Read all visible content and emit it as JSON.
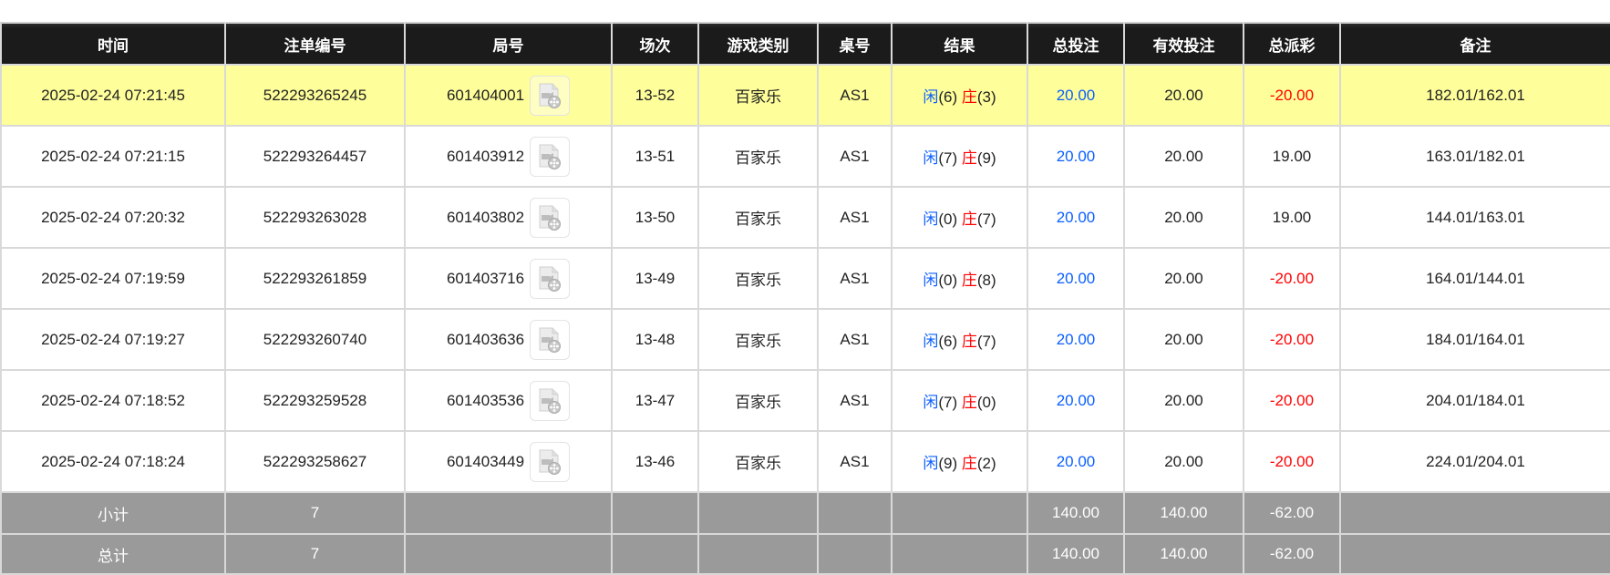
{
  "headers": [
    "时间",
    "注单编号",
    "局号",
    "场次",
    "游戏类别",
    "桌号",
    "结果",
    "总投注",
    "有效投注",
    "总派彩",
    "备注"
  ],
  "rows": [
    {
      "time": "2025-02-24 07:21:45",
      "bet_id": "522293265245",
      "round": "601404001",
      "session": "13-52",
      "game": "百家乐",
      "table": "AS1",
      "player_label": "闲",
      "player_score": "(6)",
      "banker_label": "庄",
      "banker_score": "(3)",
      "total_bet": "20.00",
      "valid_bet": "20.00",
      "payout": "-20.00",
      "payout_negative": true,
      "note": "182.01/162.01",
      "highlighted": true
    },
    {
      "time": "2025-02-24 07:21:15",
      "bet_id": "522293264457",
      "round": "601403912",
      "session": "13-51",
      "game": "百家乐",
      "table": "AS1",
      "player_label": "闲",
      "player_score": "(7)",
      "banker_label": "庄",
      "banker_score": "(9)",
      "total_bet": "20.00",
      "valid_bet": "20.00",
      "payout": "19.00",
      "payout_negative": false,
      "note": "163.01/182.01"
    },
    {
      "time": "2025-02-24 07:20:32",
      "bet_id": "522293263028",
      "round": "601403802",
      "session": "13-50",
      "game": "百家乐",
      "table": "AS1",
      "player_label": "闲",
      "player_score": "(0)",
      "banker_label": "庄",
      "banker_score": "(7)",
      "total_bet": "20.00",
      "valid_bet": "20.00",
      "payout": "19.00",
      "payout_negative": false,
      "note": "144.01/163.01"
    },
    {
      "time": "2025-02-24 07:19:59",
      "bet_id": "522293261859",
      "round": "601403716",
      "session": "13-49",
      "game": "百家乐",
      "table": "AS1",
      "player_label": "闲",
      "player_score": "(0)",
      "banker_label": "庄",
      "banker_score": "(8)",
      "total_bet": "20.00",
      "valid_bet": "20.00",
      "payout": "-20.00",
      "payout_negative": true,
      "note": "164.01/144.01"
    },
    {
      "time": "2025-02-24 07:19:27",
      "bet_id": "522293260740",
      "round": "601403636",
      "session": "13-48",
      "game": "百家乐",
      "table": "AS1",
      "player_label": "闲",
      "player_score": "(6)",
      "banker_label": "庄",
      "banker_score": "(7)",
      "total_bet": "20.00",
      "valid_bet": "20.00",
      "payout": "-20.00",
      "payout_negative": true,
      "note": "184.01/164.01"
    },
    {
      "time": "2025-02-24 07:18:52",
      "bet_id": "522293259528",
      "round": "601403536",
      "session": "13-47",
      "game": "百家乐",
      "table": "AS1",
      "player_label": "闲",
      "player_score": "(7)",
      "banker_label": "庄",
      "banker_score": "(0)",
      "total_bet": "20.00",
      "valid_bet": "20.00",
      "payout": "-20.00",
      "payout_negative": true,
      "note": "204.01/184.01"
    },
    {
      "time": "2025-02-24 07:18:24",
      "bet_id": "522293258627",
      "round": "601403449",
      "session": "13-46",
      "game": "百家乐",
      "table": "AS1",
      "player_label": "闲",
      "player_score": "(9)",
      "banker_label": "庄",
      "banker_score": "(2)",
      "total_bet": "20.00",
      "valid_bet": "20.00",
      "payout": "-20.00",
      "payout_negative": true,
      "note": "224.01/204.01"
    }
  ],
  "subtotal": {
    "label": "小计",
    "count": "7",
    "total_bet": "140.00",
    "valid_bet": "140.00",
    "payout": "-62.00"
  },
  "total": {
    "label": "总计",
    "count": "7",
    "total_bet": "140.00",
    "valid_bet": "140.00",
    "payout": "-62.00"
  },
  "icons": {
    "replay": "video-file-icon"
  },
  "colors": {
    "header_bg": "#1b1b1b",
    "highlight": "#fefe9a",
    "summary_bg": "#9a9a9a",
    "player": "#0a5fff",
    "banker": "#ff0000",
    "negative": "#ff0000",
    "bet": "#0a5fff"
  }
}
